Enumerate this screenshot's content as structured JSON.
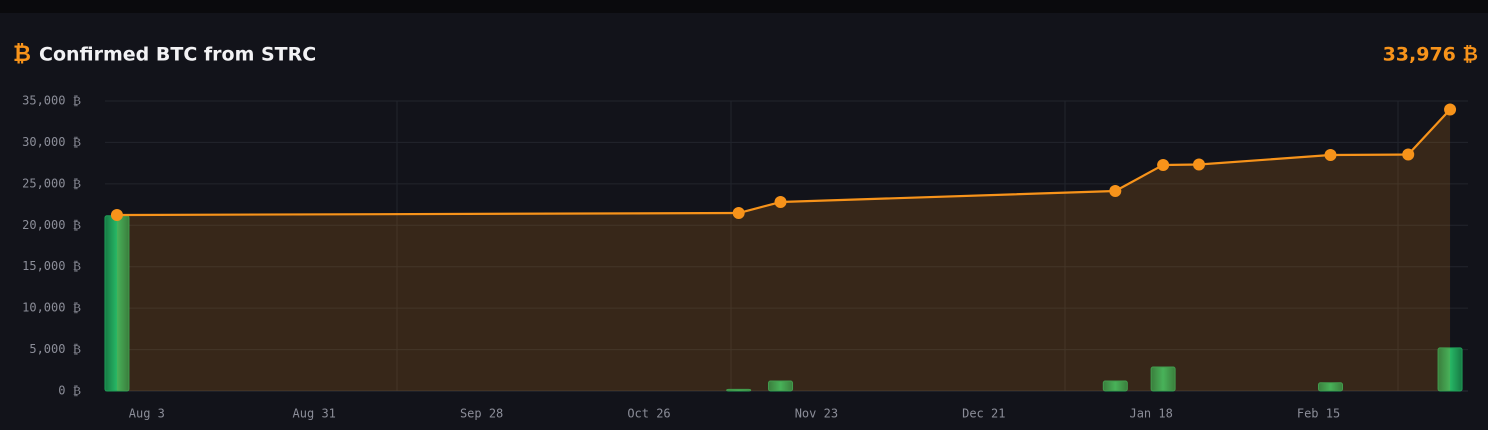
{
  "chart_data": {
    "type": "line",
    "icon": "₿",
    "title": "Confirmed BTC from STRC",
    "total": "33,976 ₿",
    "x": [
      "Jul 29",
      "Nov 10",
      "Nov 17",
      "Jan 12",
      "Jan 20",
      "Jan 26",
      "Feb 17",
      "Mar 2",
      "Mar 9"
    ],
    "series": [
      {
        "type": "line",
        "color": "#f7931a",
        "values": [
          21240,
          21480,
          22810,
          24140,
          27280,
          27340,
          28480,
          28540,
          33976
        ]
      },
      {
        "type": "bar",
        "color": "#1f9d57",
        "values": [
          21150,
          200,
          1200,
          1200,
          2900,
          null,
          1000,
          null,
          5200
        ]
      }
    ],
    "xlim": [
      "Jul 27",
      "Mar 12"
    ],
    "xticks": [
      "Aug 3",
      "Aug 31",
      "Sep 28",
      "Oct 26",
      "Nov 23",
      "Dec 21",
      "Jan 18",
      "Feb 15"
    ],
    "ylim": [
      0,
      35000
    ],
    "yticks": [
      {
        "value": 0,
        "label": "0 ₿"
      },
      {
        "value": 5000,
        "label": "5,000 ₿"
      },
      {
        "value": 10000,
        "label": "10,000 ₿"
      },
      {
        "value": 15000,
        "label": "15,000 ₿"
      },
      {
        "value": 20000,
        "label": "20,000 ₿"
      },
      {
        "value": 25000,
        "label": "25,000 ₿"
      },
      {
        "value": 30000,
        "label": "30,000 ₿"
      },
      {
        "value": 35000,
        "label": "35,000 ₿"
      }
    ],
    "grid": true
  }
}
